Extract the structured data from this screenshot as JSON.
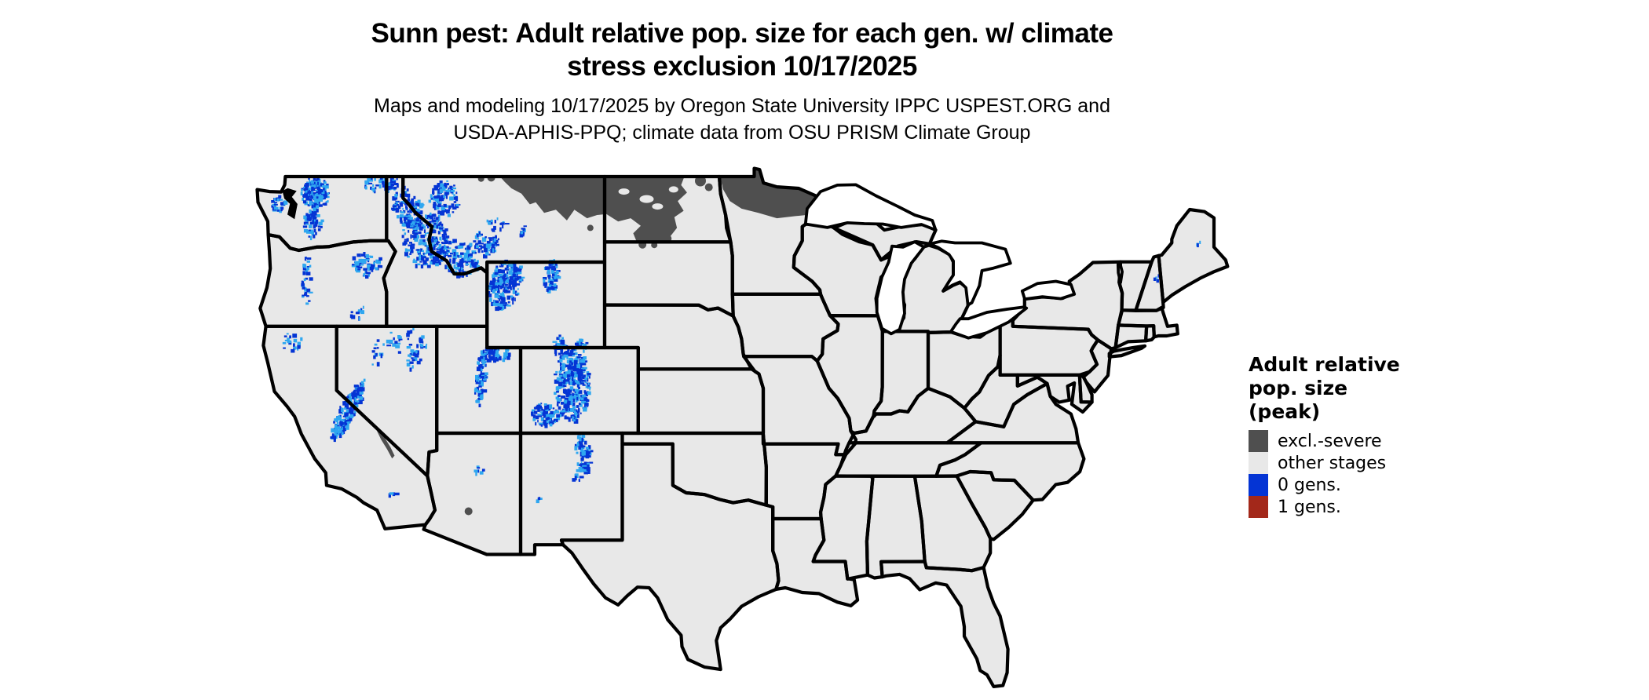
{
  "title": {
    "line1": "Sunn pest: Adult relative pop. size for each gen. w/ climate",
    "line2": "stress exclusion 10/17/2025"
  },
  "subtitle": {
    "line1": "Maps and modeling 10/17/2025 by Oregon State University IPPC USPEST.ORG and",
    "line2": "USDA-APHIS-PPQ; climate data from OSU PRISM Climate Group"
  },
  "legend": {
    "title_lines": [
      "Adult relative",
      "pop. size",
      "(peak)"
    ],
    "entries": [
      {
        "id": "excl-severe",
        "label": "excl.-severe",
        "color": "#4f4f4f"
      },
      {
        "id": "other-stages",
        "label": "other stages",
        "color": "#e8e8e8"
      },
      {
        "id": "zero-gens",
        "label": "0 gens.",
        "color": "#0434d4"
      },
      {
        "id": "one-gens",
        "label": "1 gens.",
        "color": "#a3281a"
      }
    ]
  },
  "map": {
    "background": "#ffffff",
    "state_fill": "#e8e8e8",
    "border_color": "#000000",
    "water_fill": "#ffffff",
    "zero_gens_light_color": "#2fa7f0",
    "excluded_area_labels": [
      "northeastern Montana",
      "northern North Dakota",
      "northern Minnesota",
      "Death Valley region",
      "Phoenix area"
    ],
    "zero_gens_area_labels": [
      "Washington Cascades",
      "Olympic Mountains",
      "northern Idaho Rockies",
      "western Montana ranges",
      "Greater Yellowstone and Wind River Range",
      "Bighorn Mountains",
      "Uinta Mountains",
      "Wasatch Range",
      "Colorado Rockies",
      "San Juan Mountains",
      "Sangre de Cristo Mountains",
      "Sierra Nevada",
      "Great Basin ranges",
      "Blue Mountains",
      "Oregon Cascades"
    ]
  }
}
